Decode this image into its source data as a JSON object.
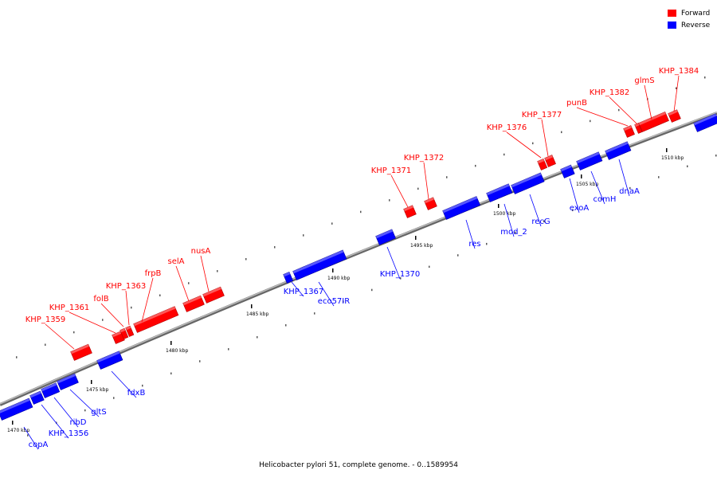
{
  "title": "Helicobacter pylori 51, complete genome. - 0..1589954",
  "legend": {
    "forward": {
      "label": "Forward",
      "color": "#ff0000"
    },
    "reverse": {
      "label": "Reverse",
      "color": "#0000ff"
    }
  },
  "colors": {
    "forward": "#ff0000",
    "reverse": "#0000ff",
    "backbone": "#888888"
  },
  "scale_labels": [
    "1470 kbp",
    "1475 kbp",
    "1480 kbp",
    "1485 kbp",
    "1490 kbp",
    "1495 kbp",
    "1500 kbp",
    "1505 kbp",
    "1510 kbp"
  ],
  "forward_labels": [
    "KHP_1359",
    "KHP_1361",
    "folB",
    "KHP_1363",
    "frpB",
    "selA",
    "nusA",
    "KHP_1371",
    "KHP_1372",
    "KHP_1376",
    "KHP_1377",
    "punB",
    "KHP_1382",
    "glmS",
    "KHP_1384"
  ],
  "reverse_labels": [
    "copA",
    "KHP_1356",
    "ribD",
    "gltS",
    "fdxB",
    "KHP_1367",
    "eco57IR",
    "KHP_1370",
    "res",
    "mod_2",
    "recG",
    "exoA",
    "comH",
    "dnaA"
  ]
}
